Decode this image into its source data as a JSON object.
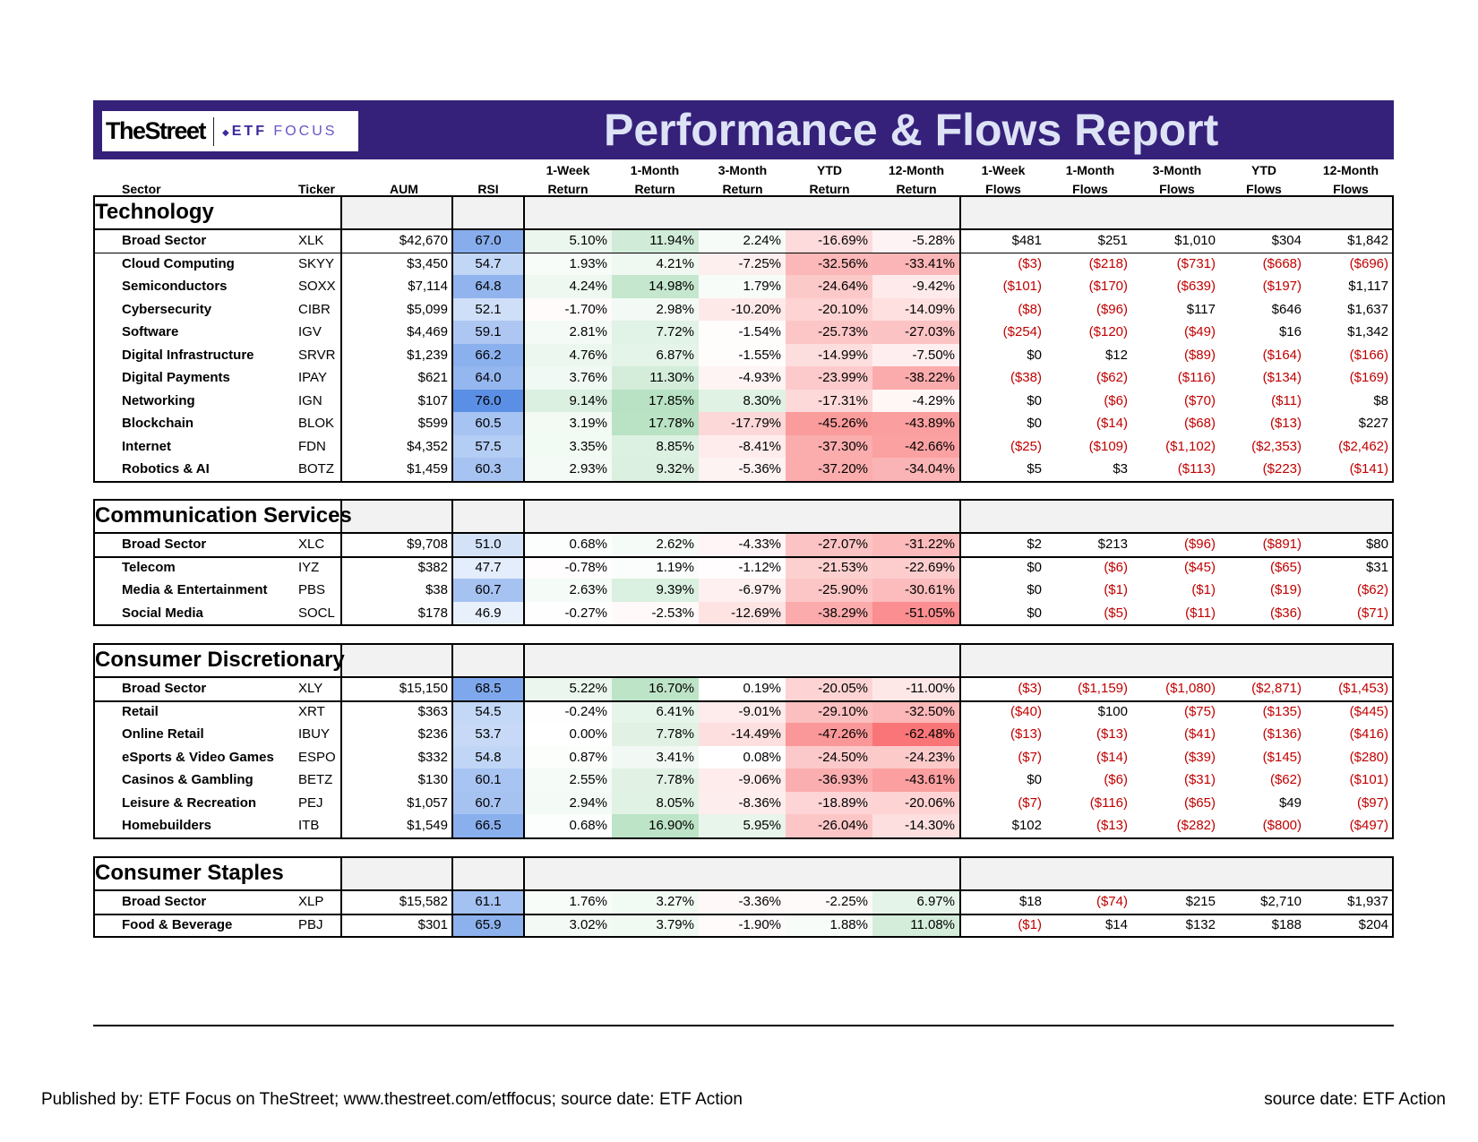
{
  "header": {
    "logo_thestreet": "TheStreet",
    "logo_etf": "ETF",
    "logo_focus": "FOCUS",
    "title": "Performance & Flows Report"
  },
  "columns": [
    {
      "line1": "",
      "line2": "Sector"
    },
    {
      "line1": "",
      "line2": "Ticker"
    },
    {
      "line1": "",
      "line2": "AUM"
    },
    {
      "line1": "",
      "line2": "RSI"
    },
    {
      "line1": "1-Week",
      "line2": "Return"
    },
    {
      "line1": "1-Month",
      "line2": "Return"
    },
    {
      "line1": "3-Month",
      "line2": "Return"
    },
    {
      "line1": "YTD",
      "line2": "Return"
    },
    {
      "line1": "12-Month",
      "line2": "Return"
    },
    {
      "line1": "1-Week",
      "line2": "Flows"
    },
    {
      "line1": "1-Month",
      "line2": "Flows"
    },
    {
      "line1": "3-Month",
      "line2": "Flows"
    },
    {
      "line1": "YTD",
      "line2": "Flows"
    },
    {
      "line1": "12-Month",
      "line2": "Flows"
    }
  ],
  "sections": [
    {
      "title": "Technology",
      "rows": [
        [
          "Broad Sector",
          "XLK",
          "$42,670",
          "67.0",
          "5.10%",
          "11.94%",
          "2.24%",
          "-16.69%",
          "-5.28%",
          "$481",
          "$251",
          "$1,010",
          "$304",
          "$1,842"
        ],
        [
          "Cloud Computing",
          "SKYY",
          "$3,450",
          "54.7",
          "1.93%",
          "4.21%",
          "-7.25%",
          "-32.56%",
          "-33.41%",
          "($3)",
          "($218)",
          "($731)",
          "($668)",
          "($696)"
        ],
        [
          "Semiconductors",
          "SOXX",
          "$7,114",
          "64.8",
          "4.24%",
          "14.98%",
          "1.79%",
          "-24.64%",
          "-9.42%",
          "($101)",
          "($170)",
          "($639)",
          "($197)",
          "$1,117"
        ],
        [
          "Cybersecurity",
          "CIBR",
          "$5,099",
          "52.1",
          "-1.70%",
          "2.98%",
          "-10.20%",
          "-20.10%",
          "-14.09%",
          "($8)",
          "($96)",
          "$117",
          "$646",
          "$1,637"
        ],
        [
          "Software",
          "IGV",
          "$4,469",
          "59.1",
          "2.81%",
          "7.72%",
          "-1.54%",
          "-25.73%",
          "-27.03%",
          "($254)",
          "($120)",
          "($49)",
          "$16",
          "$1,342"
        ],
        [
          "Digital Infrastructure",
          "SRVR",
          "$1,239",
          "66.2",
          "4.76%",
          "6.87%",
          "-1.55%",
          "-14.99%",
          "-7.50%",
          "$0",
          "$12",
          "($89)",
          "($164)",
          "($166)"
        ],
        [
          "Digital Payments",
          "IPAY",
          "$621",
          "64.0",
          "3.76%",
          "11.30%",
          "-4.93%",
          "-23.99%",
          "-38.22%",
          "($38)",
          "($62)",
          "($116)",
          "($134)",
          "($169)"
        ],
        [
          "Networking",
          "IGN",
          "$107",
          "76.0",
          "9.14%",
          "17.85%",
          "8.30%",
          "-17.31%",
          "-4.29%",
          "$0",
          "($6)",
          "($70)",
          "($11)",
          "$8"
        ],
        [
          "Blockchain",
          "BLOK",
          "$599",
          "60.5",
          "3.19%",
          "17.78%",
          "-17.79%",
          "-45.26%",
          "-43.89%",
          "$0",
          "($14)",
          "($68)",
          "($13)",
          "$227"
        ],
        [
          "Internet",
          "FDN",
          "$4,352",
          "57.5",
          "3.35%",
          "8.85%",
          "-8.41%",
          "-37.30%",
          "-42.66%",
          "($25)",
          "($109)",
          "($1,102)",
          "($2,353)",
          "($2,462)"
        ],
        [
          "Robotics & AI",
          "BOTZ",
          "$1,459",
          "60.3",
          "2.93%",
          "9.32%",
          "-5.36%",
          "-37.20%",
          "-34.04%",
          "$5",
          "$3",
          "($113)",
          "($223)",
          "($141)"
        ]
      ]
    },
    {
      "title": "Communication Services",
      "rows": [
        [
          "Broad Sector",
          "XLC",
          "$9,708",
          "51.0",
          "0.68%",
          "2.62%",
          "-4.33%",
          "-27.07%",
          "-31.22%",
          "$2",
          "$213",
          "($96)",
          "($891)",
          "$80"
        ],
        [
          "Telecom",
          "IYZ",
          "$382",
          "47.7",
          "-0.78%",
          "1.19%",
          "-1.12%",
          "-21.53%",
          "-22.69%",
          "$0",
          "($6)",
          "($45)",
          "($65)",
          "$31"
        ],
        [
          "Media & Entertainment",
          "PBS",
          "$38",
          "60.7",
          "2.63%",
          "9.39%",
          "-6.97%",
          "-25.90%",
          "-30.61%",
          "$0",
          "($1)",
          "($1)",
          "($19)",
          "($62)"
        ],
        [
          "Social Media",
          "SOCL",
          "$178",
          "46.9",
          "-0.27%",
          "-2.53%",
          "-12.69%",
          "-38.29%",
          "-51.05%",
          "$0",
          "($5)",
          "($11)",
          "($36)",
          "($71)"
        ]
      ]
    },
    {
      "title": "Consumer Discretionary",
      "rows": [
        [
          "Broad Sector",
          "XLY",
          "$15,150",
          "68.5",
          "5.22%",
          "16.70%",
          "0.19%",
          "-20.05%",
          "-11.00%",
          "($3)",
          "($1,159)",
          "($1,080)",
          "($2,871)",
          "($1,453)"
        ],
        [
          "Retail",
          "XRT",
          "$363",
          "54.5",
          "-0.24%",
          "6.41%",
          "-9.01%",
          "-29.10%",
          "-32.50%",
          "($40)",
          "$100",
          "($75)",
          "($135)",
          "($445)"
        ],
        [
          "Online Retail",
          "IBUY",
          "$236",
          "53.7",
          "0.00%",
          "7.78%",
          "-14.49%",
          "-47.26%",
          "-62.48%",
          "($13)",
          "($13)",
          "($41)",
          "($136)",
          "($416)"
        ],
        [
          "eSports & Video Games",
          "ESPO",
          "$332",
          "54.8",
          "0.87%",
          "3.41%",
          "0.08%",
          "-24.50%",
          "-24.23%",
          "($7)",
          "($14)",
          "($39)",
          "($145)",
          "($280)"
        ],
        [
          "Casinos & Gambling",
          "BETZ",
          "$130",
          "60.1",
          "2.55%",
          "7.78%",
          "-9.06%",
          "-36.93%",
          "-43.61%",
          "$0",
          "($6)",
          "($31)",
          "($62)",
          "($101)"
        ],
        [
          "Leisure & Recreation",
          "PEJ",
          "$1,057",
          "60.7",
          "2.94%",
          "8.05%",
          "-8.36%",
          "-18.89%",
          "-20.06%",
          "($7)",
          "($116)",
          "($65)",
          "$49",
          "($97)"
        ],
        [
          "Homebuilders",
          "ITB",
          "$1,549",
          "66.5",
          "0.68%",
          "16.90%",
          "5.95%",
          "-26.04%",
          "-14.30%",
          "$102",
          "($13)",
          "($282)",
          "($800)",
          "($497)"
        ]
      ]
    },
    {
      "title": "Consumer Staples",
      "rows": [
        [
          "Broad Sector",
          "XLP",
          "$15,582",
          "61.1",
          "1.76%",
          "3.27%",
          "-3.36%",
          "-2.25%",
          "6.97%",
          "$18",
          "($74)",
          "$215",
          "$2,710",
          "$1,937"
        ],
        [
          "Food & Beverage",
          "PBJ",
          "$301",
          "65.9",
          "3.02%",
          "3.79%",
          "-1.90%",
          "1.88%",
          "11.08%",
          "($1)",
          "$14",
          "$132",
          "$188",
          "$204"
        ]
      ]
    }
  ],
  "footer": {
    "left": "Published by: ETF Focus on TheStreet; www.thestreet.com/etffocus; source date: ETF Action",
    "right": "source date: ETF Action"
  },
  "colors": {
    "banner": "#35207a",
    "title_text": "#dde3f5",
    "negative_text": "#c00000",
    "rsi_scale": "#5b8fe6",
    "return_positive": "#63be7b",
    "return_negative": "#f8696b",
    "section_header_fill": "#f2f2f2"
  }
}
